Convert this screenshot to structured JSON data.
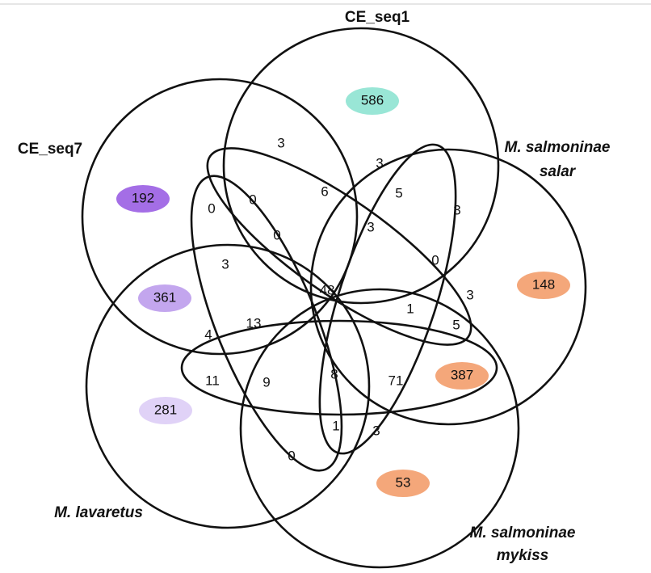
{
  "sets": [
    {
      "lines": [
        "CE_seq1"
      ]
    },
    {
      "lines": [
        "CE_seq7"
      ]
    },
    {
      "lines": [
        "M. salmoninae",
        "salar"
      ]
    },
    {
      "lines": [
        "M. lavaretus"
      ]
    },
    {
      "lines": [
        "M. salmoninae",
        "mykiss"
      ]
    }
  ],
  "regions": [
    586,
    192,
    148,
    361,
    387,
    281,
    53,
    3,
    3,
    6,
    5,
    3,
    0,
    0,
    0,
    3,
    0,
    3,
    48,
    3,
    13,
    1,
    4,
    5,
    11,
    9,
    8,
    71,
    1,
    3,
    0
  ]
}
